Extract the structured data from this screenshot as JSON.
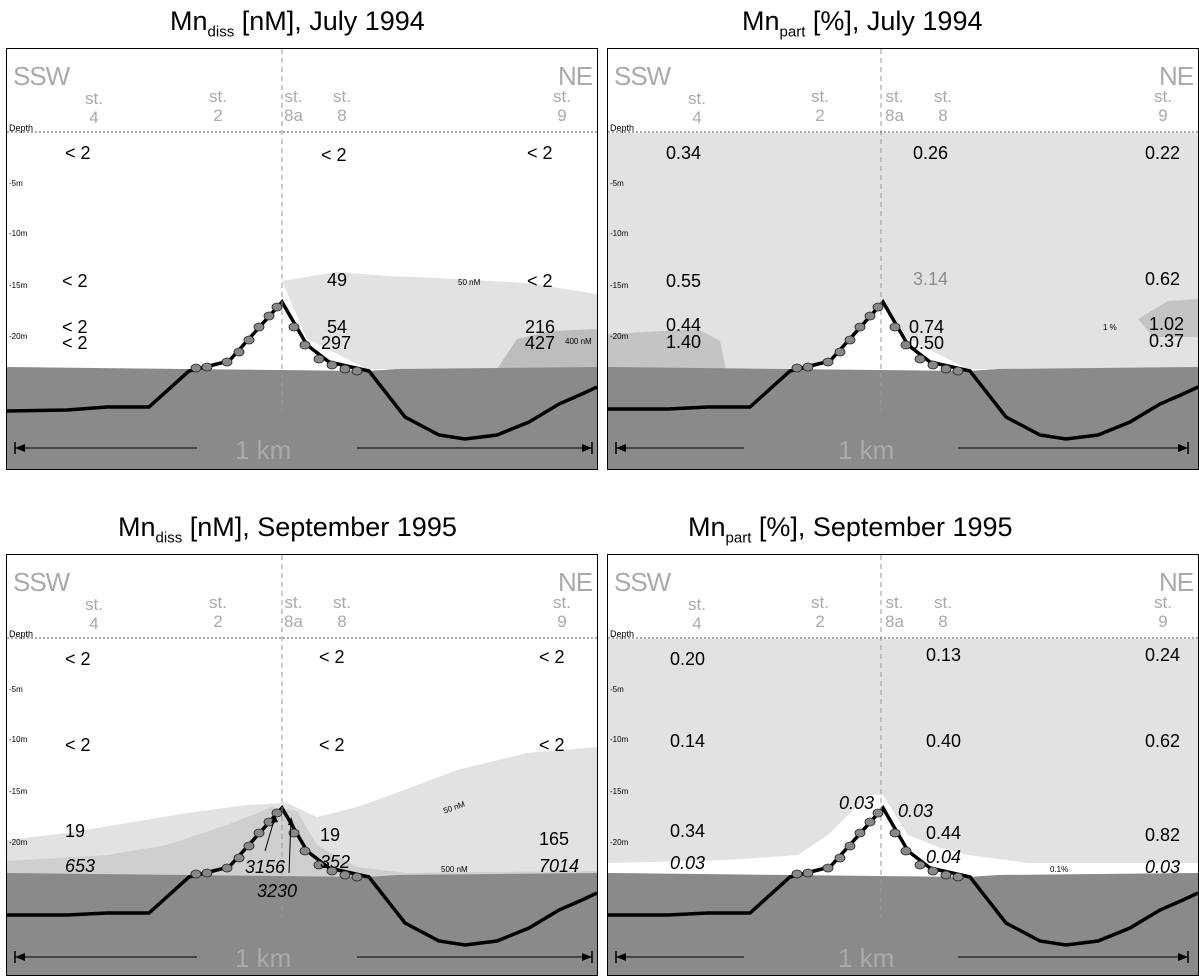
{
  "labels": {
    "dir_left": "SSW",
    "dir_right": "NE",
    "depth": "Depth",
    "depth_ticks": [
      "-5m",
      "-10m",
      "-15m",
      "-20m"
    ],
    "scale": "1 km",
    "stations": [
      {
        "top": "st.",
        "num": "4"
      },
      {
        "top": "st.",
        "num": "2"
      },
      {
        "top": "st.",
        "num": "8a"
      },
      {
        "top": "st.",
        "num": "8"
      },
      {
        "top": "st.",
        "num": "9"
      }
    ]
  },
  "panels": [
    {
      "title": {
        "main": "Mn",
        "sub": "diss",
        "rest": " [nM],  July 1994"
      },
      "values": [
        {
          "text": "< 2",
          "style": "normal"
        },
        {
          "text": "< 2",
          "style": "normal"
        },
        {
          "text": "< 2",
          "style": "normal"
        },
        {
          "text": "< 2",
          "style": "normal"
        },
        {
          "text": "49",
          "style": "normal"
        },
        {
          "text": "< 2",
          "style": "normal"
        },
        {
          "text": "< 2",
          "style": "normal"
        },
        {
          "text": "< 2",
          "style": "normal"
        },
        {
          "text": "54",
          "style": "normal"
        },
        {
          "text": "297",
          "style": "normal"
        },
        {
          "text": "216",
          "style": "normal"
        },
        {
          "text": "427",
          "style": "normal"
        }
      ],
      "isolines": [
        "50 nM",
        "400 nM"
      ]
    },
    {
      "title": {
        "main": "Mn",
        "sub": "part",
        "rest": " [%], July 1994"
      },
      "values": [
        {
          "text": "0.34",
          "style": "normal"
        },
        {
          "text": "0.26",
          "style": "normal"
        },
        {
          "text": "0.22",
          "style": "normal"
        },
        {
          "text": "0.55",
          "style": "normal"
        },
        {
          "text": "3.14",
          "style": "grey"
        },
        {
          "text": "0.62",
          "style": "normal"
        },
        {
          "text": "0.44",
          "style": "normal"
        },
        {
          "text": "1.40",
          "style": "normal"
        },
        {
          "text": "0.74",
          "style": "normal"
        },
        {
          "text": "0.50",
          "style": "normal"
        },
        {
          "text": "1.02",
          "style": "normal"
        },
        {
          "text": "0.37",
          "style": "normal"
        }
      ],
      "isolines": [
        "1 %"
      ]
    },
    {
      "title": {
        "main": "Mn",
        "sub": "diss",
        "rest": " [nM],  September 1995"
      },
      "values": [
        {
          "text": "< 2",
          "style": "normal"
        },
        {
          "text": "< 2",
          "style": "normal"
        },
        {
          "text": "< 2",
          "style": "normal"
        },
        {
          "text": "< 2",
          "style": "normal"
        },
        {
          "text": "< 2",
          "style": "normal"
        },
        {
          "text": "< 2",
          "style": "normal"
        },
        {
          "text": "19",
          "style": "normal"
        },
        {
          "text": "653",
          "style": "italic"
        },
        {
          "text": "19",
          "style": "normal"
        },
        {
          "text": "352",
          "style": "italic"
        },
        {
          "text": "3156",
          "style": "italic"
        },
        {
          "text": "3230",
          "style": "italic"
        },
        {
          "text": "165",
          "style": "normal"
        },
        {
          "text": "7014",
          "style": "italic"
        }
      ],
      "isolines": [
        "50 nM",
        "500 nM"
      ]
    },
    {
      "title": {
        "main": "Mn",
        "sub": "part",
        "rest": " [%], September 1995"
      },
      "values": [
        {
          "text": "0.20",
          "style": "normal"
        },
        {
          "text": "0.13",
          "style": "normal"
        },
        {
          "text": "0.24",
          "style": "normal"
        },
        {
          "text": "0.14",
          "style": "normal"
        },
        {
          "text": "0.40",
          "style": "normal"
        },
        {
          "text": "0.62",
          "style": "normal"
        },
        {
          "text": "0.03",
          "style": "italic"
        },
        {
          "text": "0.03",
          "style": "italic"
        },
        {
          "text": "0.34",
          "style": "normal"
        },
        {
          "text": "0.44",
          "style": "normal"
        },
        {
          "text": "0.82",
          "style": "normal"
        },
        {
          "text": "0.03",
          "style": "italic"
        },
        {
          "text": "0.04",
          "style": "italic"
        },
        {
          "text": "0.03",
          "style": "italic"
        }
      ],
      "isolines": [
        "0.1%"
      ]
    }
  ]
}
